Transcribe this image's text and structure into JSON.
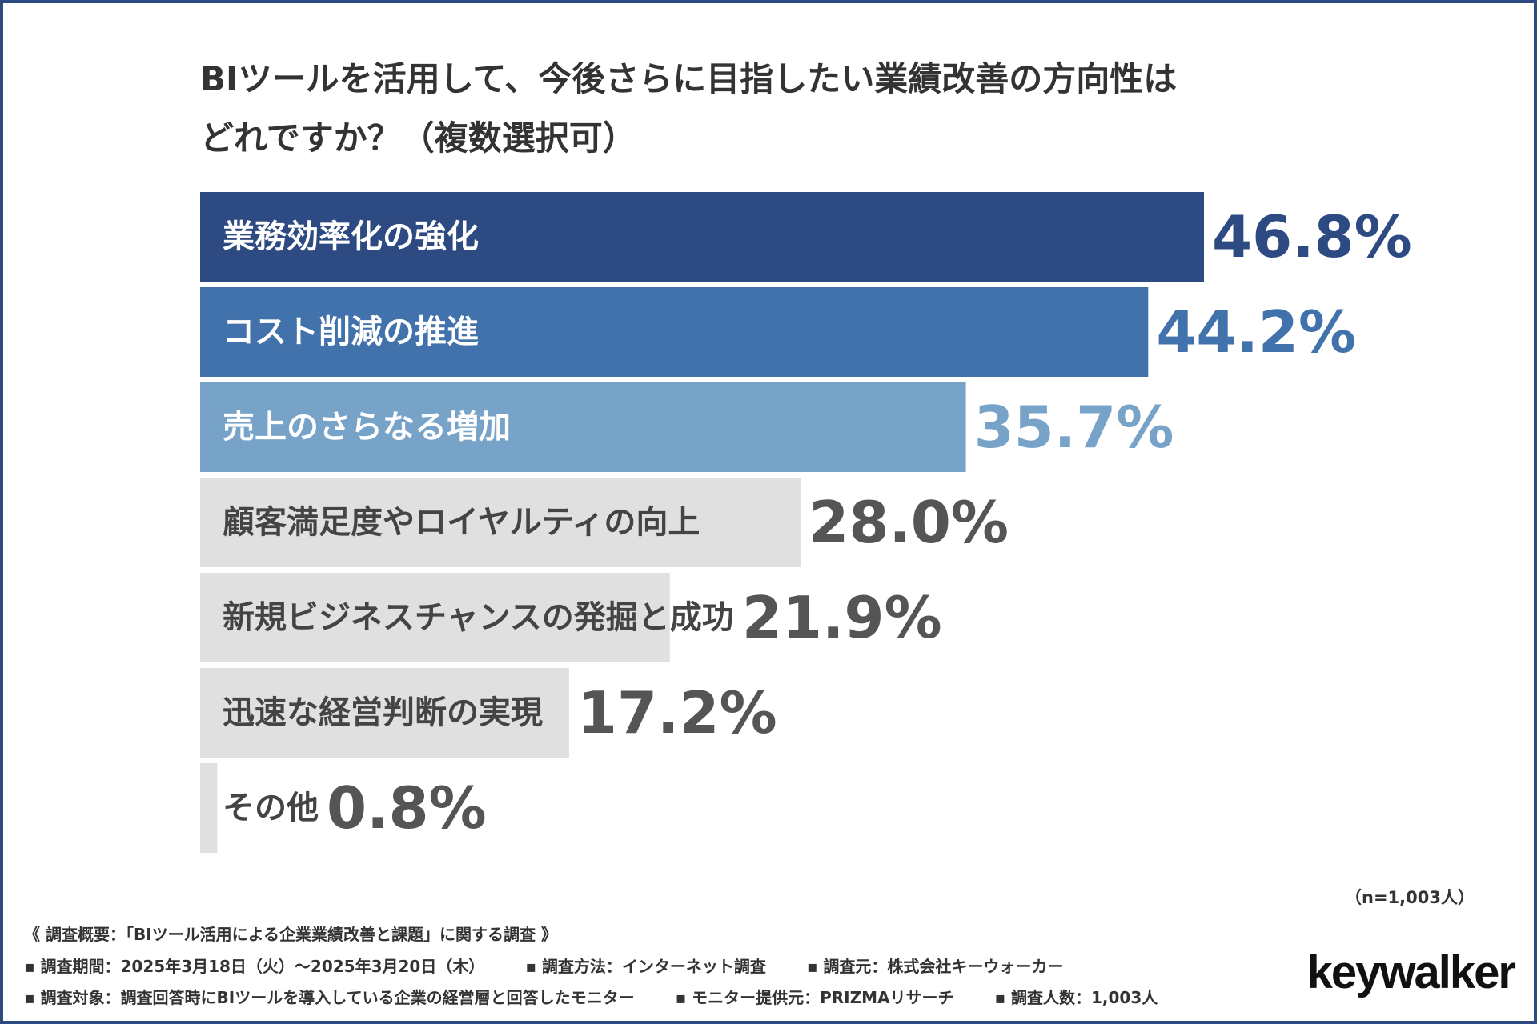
{
  "title": {
    "line1": "BIツールを活用して、今後さらに目指したい業績改善の方向性は",
    "line2": "どれですか？（複数選択可）"
  },
  "chart_data": {
    "type": "bar",
    "orientation": "horizontal",
    "title": "BIツールを活用して、今後さらに目指したい業績改善の方向性はどれですか？（複数選択可）",
    "categories": [
      "業務効率化の強化",
      "コスト削減の推進",
      "売上のさらなる増加",
      "顧客満足度やロイヤルティの向上",
      "新規ビジネスチャンスの発掘と成功",
      "迅速な経営判断の実現",
      "その他"
    ],
    "values": [
      46.8,
      44.2,
      35.7,
      28.0,
      21.9,
      17.2,
      0.8
    ],
    "value_labels": [
      "46.8%",
      "44.2%",
      "35.7%",
      "28.0%",
      "21.9%",
      "17.2%",
      "0.8%"
    ],
    "unit": "%",
    "xlim": [
      0,
      46.8
    ],
    "bar_colors": [
      "#2d4a82",
      "#4272ac",
      "#78a3c8",
      "#e0e0e0",
      "#e0e0e0",
      "#e0e0e0",
      "#e0e0e0"
    ],
    "label_colors": [
      "#ffffff",
      "#ffffff",
      "#ffffff",
      "#444444",
      "#444444",
      "#444444",
      "#444444"
    ],
    "value_colors": [
      "#2d4a82",
      "#4272ac",
      "#78a3c8",
      "#555555",
      "#555555",
      "#555555",
      "#555555"
    ],
    "sample_note": "（n=1,003人）"
  },
  "footer": {
    "overview": "《 調査概要：「BIツール活用による企業業績改善と課題」に関する調査 》",
    "period": "▪ 調査期間：2025年3月18日（火）〜2025年3月20日（木）",
    "method": "▪ 調査方法：インターネット調査",
    "source": "▪ 調査元：株式会社キーウォーカー",
    "target": "▪ 調査対象：調査回答時にBIツールを導入している企業の経営層と回答したモニター",
    "provider": "▪ モニター提供元：PRIZMAリサーチ",
    "count": "▪ 調査人数：1,003人"
  },
  "logo": {
    "text": "keywalker"
  }
}
